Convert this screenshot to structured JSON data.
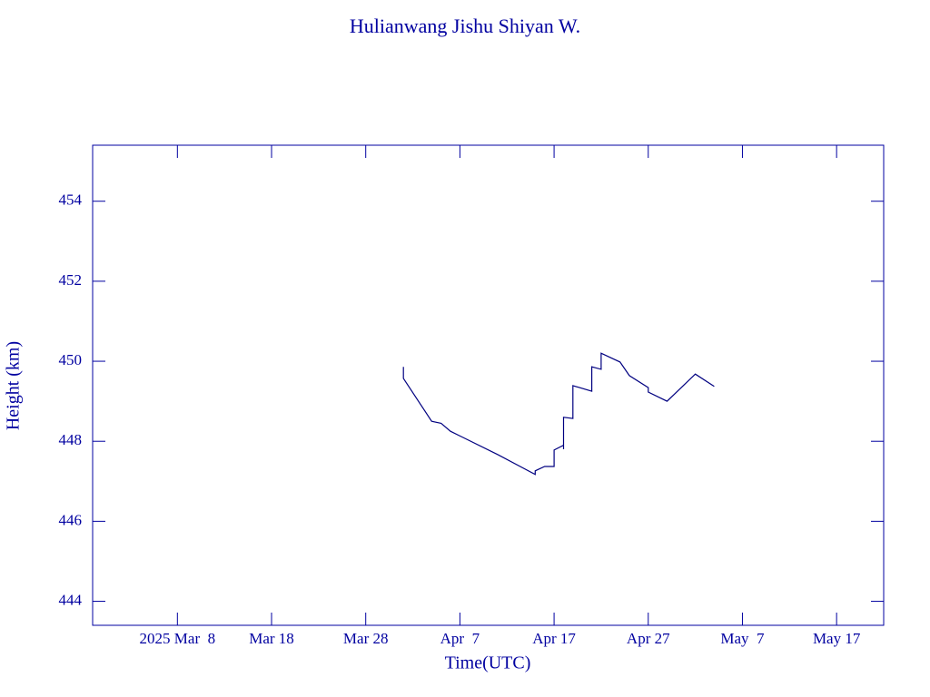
{
  "chart_data": {
    "type": "line",
    "title": "Hulianwang Jishu Shiyan W.",
    "x_label": "Time(UTC)",
    "y_label": "Height (km)",
    "xlim": [
      "2025-02-27",
      "2025-05-22"
    ],
    "xticks": [
      {
        "value": "2025-03-08",
        "label": "2025 Mar  8"
      },
      {
        "value": "2025-03-18",
        "label": "Mar 18"
      },
      {
        "value": "2025-03-28",
        "label": "Mar 28"
      },
      {
        "value": "2025-04-07",
        "label": "Apr  7"
      },
      {
        "value": "2025-04-17",
        "label": "Apr 17"
      },
      {
        "value": "2025-04-27",
        "label": "Apr 27"
      },
      {
        "value": "2025-05-07",
        "label": "May  7"
      },
      {
        "value": "2025-05-17",
        "label": "May 17"
      }
    ],
    "ylim": [
      443.4,
      455.4
    ],
    "yticks": [
      444,
      446,
      448,
      450,
      452,
      454
    ],
    "color": "#000080",
    "x": [
      "2025-04-01",
      "2025-04-01",
      "2025-04-04",
      "2025-04-05",
      "2025-04-06",
      "2025-04-11",
      "2025-04-15",
      "2025-04-15",
      "2025-04-16",
      "2025-04-17",
      "2025-04-17",
      "2025-04-18",
      "2025-04-18",
      "2025-04-18",
      "2025-04-19",
      "2025-04-19",
      "2025-04-21",
      "2025-04-21",
      "2025-04-22",
      "2025-04-22",
      "2025-04-24",
      "2025-04-25",
      "2025-04-27",
      "2025-04-27",
      "2025-04-29",
      "2025-05-02",
      "2025-05-04"
    ],
    "values": [
      449.86,
      449.57,
      448.5,
      448.45,
      448.25,
      447.67,
      447.17,
      447.26,
      447.37,
      447.37,
      447.78,
      447.9,
      447.8,
      448.6,
      448.57,
      449.39,
      449.25,
      449.86,
      449.8,
      450.2,
      449.98,
      449.64,
      449.34,
      449.23,
      449.0,
      449.68,
      449.37
    ]
  }
}
